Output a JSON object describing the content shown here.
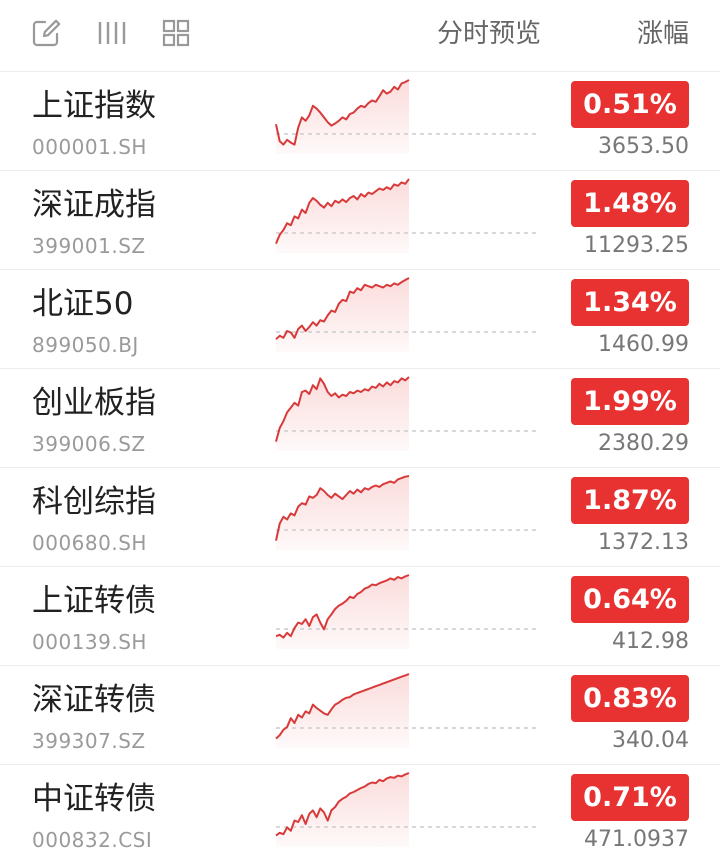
{
  "header": {
    "icons": [
      "edit-icon",
      "columns-icon",
      "grid-icon"
    ],
    "preview_label": "分时预览",
    "change_label": "涨幅"
  },
  "colors": {
    "up": "#e83232",
    "sparkline_line": "#d83a3a",
    "sparkline_fill": "#fbdada",
    "baseline": "#cccccc"
  },
  "rows": [
    {
      "name": "上证指数",
      "code": "000001.SH",
      "change": "0.51%",
      "price": "3653.50",
      "trend": [
        0.35,
        0.1,
        0.05,
        0.12,
        0.08,
        0.05,
        0.3,
        0.45,
        0.4,
        0.48,
        0.62,
        0.58,
        0.52,
        0.45,
        0.38,
        0.33,
        0.36,
        0.4,
        0.45,
        0.42,
        0.5,
        0.52,
        0.58,
        0.62,
        0.6,
        0.66,
        0.7,
        0.68,
        0.76,
        0.85,
        0.8,
        0.83,
        0.9,
        0.86,
        0.95,
        0.97,
        1.0
      ]
    },
    {
      "name": "深证成指",
      "code": "399001.SZ",
      "change": "1.48%",
      "price": "11293.25",
      "trend": [
        0.05,
        0.18,
        0.25,
        0.35,
        0.32,
        0.45,
        0.42,
        0.55,
        0.5,
        0.65,
        0.72,
        0.68,
        0.62,
        0.58,
        0.65,
        0.6,
        0.68,
        0.65,
        0.7,
        0.66,
        0.72,
        0.75,
        0.7,
        0.78,
        0.74,
        0.8,
        0.78,
        0.82,
        0.86,
        0.84,
        0.88,
        0.85,
        0.92,
        0.9,
        0.95,
        0.93,
        1.0
      ]
    },
    {
      "name": "北证50",
      "code": "899050.BJ",
      "change": "1.34%",
      "price": "1460.99",
      "trend": [
        0.1,
        0.15,
        0.12,
        0.22,
        0.2,
        0.12,
        0.25,
        0.3,
        0.22,
        0.28,
        0.35,
        0.3,
        0.38,
        0.36,
        0.45,
        0.52,
        0.5,
        0.62,
        0.68,
        0.66,
        0.8,
        0.78,
        0.85,
        0.82,
        0.9,
        0.88,
        0.86,
        0.9,
        0.88,
        0.86,
        0.9,
        0.88,
        0.92,
        0.9,
        0.94,
        0.97,
        1.0
      ]
    },
    {
      "name": "创业板指",
      "code": "399006.SZ",
      "change": "1.99%",
      "price": "2380.29",
      "trend": [
        0.05,
        0.25,
        0.35,
        0.48,
        0.55,
        0.62,
        0.58,
        0.78,
        0.8,
        0.75,
        0.88,
        0.82,
        0.98,
        0.9,
        0.78,
        0.72,
        0.76,
        0.7,
        0.74,
        0.72,
        0.78,
        0.76,
        0.8,
        0.78,
        0.82,
        0.8,
        0.86,
        0.84,
        0.9,
        0.86,
        0.92,
        0.88,
        0.94,
        0.92,
        0.98,
        0.95,
        1.0
      ]
    },
    {
      "name": "科创综指",
      "code": "000680.SH",
      "change": "1.87%",
      "price": "1372.13",
      "trend": [
        0.05,
        0.3,
        0.4,
        0.36,
        0.45,
        0.42,
        0.55,
        0.6,
        0.58,
        0.7,
        0.68,
        0.72,
        0.82,
        0.78,
        0.72,
        0.68,
        0.74,
        0.7,
        0.66,
        0.72,
        0.78,
        0.74,
        0.8,
        0.76,
        0.82,
        0.8,
        0.84,
        0.86,
        0.84,
        0.88,
        0.9,
        0.92,
        0.9,
        0.95,
        0.97,
        0.99,
        1.0
      ]
    },
    {
      "name": "上证转债",
      "code": "000139.SH",
      "change": "0.64%",
      "price": "412.98",
      "trend": [
        0.1,
        0.12,
        0.08,
        0.15,
        0.1,
        0.22,
        0.3,
        0.28,
        0.35,
        0.25,
        0.38,
        0.42,
        0.3,
        0.2,
        0.35,
        0.42,
        0.5,
        0.55,
        0.58,
        0.62,
        0.68,
        0.66,
        0.72,
        0.75,
        0.8,
        0.82,
        0.86,
        0.85,
        0.88,
        0.9,
        0.92,
        0.95,
        0.93,
        0.97,
        0.95,
        0.98,
        1.0
      ]
    },
    {
      "name": "深证转债",
      "code": "399307.SZ",
      "change": "0.83%",
      "price": "340.04",
      "trend": [
        0.05,
        0.1,
        0.18,
        0.22,
        0.35,
        0.28,
        0.4,
        0.36,
        0.45,
        0.42,
        0.55,
        0.5,
        0.46,
        0.42,
        0.4,
        0.48,
        0.55,
        0.58,
        0.62,
        0.65,
        0.66,
        0.7,
        0.72,
        0.74,
        0.76,
        0.78,
        0.8,
        0.82,
        0.84,
        0.86,
        0.88,
        0.9,
        0.92,
        0.94,
        0.96,
        0.98,
        1.0
      ]
    },
    {
      "name": "中证转债",
      "code": "000832.CSI",
      "change": "0.71%",
      "price": "471.0937",
      "trend": [
        0.08,
        0.12,
        0.1,
        0.2,
        0.15,
        0.3,
        0.28,
        0.38,
        0.25,
        0.4,
        0.45,
        0.35,
        0.48,
        0.42,
        0.3,
        0.45,
        0.5,
        0.58,
        0.62,
        0.65,
        0.7,
        0.72,
        0.75,
        0.78,
        0.8,
        0.84,
        0.86,
        0.85,
        0.9,
        0.88,
        0.92,
        0.94,
        0.93,
        0.96,
        0.95,
        0.98,
        1.0
      ]
    }
  ]
}
